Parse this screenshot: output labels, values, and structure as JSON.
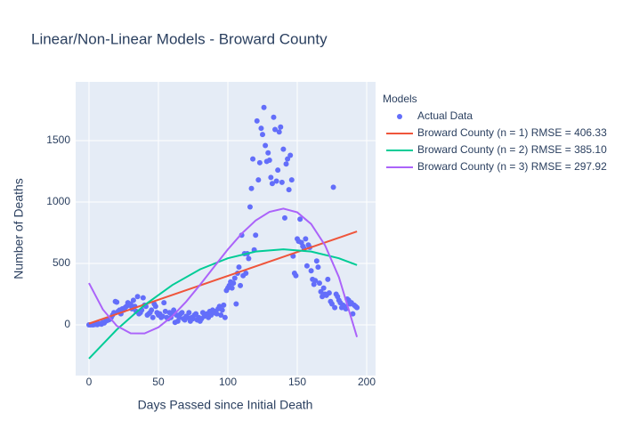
{
  "chart_data": {
    "type": "scatter",
    "title": "Linear/Non-Linear Models - Broward County",
    "x_label": "Days Passed since Initial Death",
    "y_label": "Number of Deaths",
    "legend_title": "Models",
    "xlim": [
      -9.6,
      206.4
    ],
    "ylim": [
      -413,
      1978
    ],
    "xticks": [
      0,
      50,
      100,
      150,
      200
    ],
    "yticks": [
      0,
      500,
      1000,
      1500
    ],
    "grid": true,
    "legend_position": "right",
    "series": [
      {
        "name": "Actual Data",
        "mode": "markers",
        "color": "#636efa",
        "x": [
          0,
          1,
          2,
          3,
          4,
          5,
          6,
          7,
          8,
          9,
          10,
          11,
          12,
          13,
          14,
          15,
          16,
          17,
          18,
          19,
          20,
          21,
          22,
          23,
          24,
          25,
          26,
          27,
          28,
          29,
          30,
          31,
          32,
          33,
          34,
          35,
          36,
          37,
          38,
          39,
          40,
          41,
          42,
          43,
          44,
          45,
          46,
          47,
          48,
          49,
          50,
          51,
          52,
          53,
          54,
          55,
          56,
          57,
          58,
          59,
          60,
          61,
          62,
          63,
          64,
          65,
          66,
          67,
          68,
          69,
          70,
          71,
          72,
          73,
          74,
          75,
          76,
          77,
          78,
          79,
          80,
          81,
          82,
          83,
          84,
          85,
          86,
          87,
          88,
          89,
          90,
          91,
          92,
          93,
          94,
          95,
          96,
          97,
          98,
          99,
          100,
          101,
          102,
          103,
          104,
          105,
          106,
          107,
          108,
          109,
          110,
          111,
          112,
          113,
          114,
          115,
          116,
          117,
          118,
          119,
          120,
          121,
          122,
          123,
          124,
          125,
          126,
          127,
          128,
          129,
          130,
          131,
          132,
          133,
          134,
          135,
          136,
          137,
          138,
          139,
          140,
          141,
          142,
          143,
          144,
          145,
          146,
          147,
          148,
          149,
          150,
          151,
          152,
          153,
          154,
          155,
          156,
          157,
          158,
          159,
          160,
          161,
          162,
          163,
          164,
          165,
          166,
          167,
          168,
          169,
          170,
          171,
          172,
          173,
          174,
          175,
          176,
          177,
          178,
          179,
          180,
          181,
          182,
          183,
          184,
          185,
          186,
          187,
          188,
          189,
          190,
          191,
          192,
          193
        ],
        "values": [
          0,
          0,
          1,
          0,
          3,
          5,
          2,
          8,
          10,
          5,
          20,
          15,
          30,
          35,
          40,
          45,
          60,
          80,
          100,
          190,
          185,
          110,
          120,
          90,
          130,
          120,
          140,
          150,
          180,
          160,
          170,
          130,
          200,
          150,
          110,
          230,
          90,
          100,
          120,
          220,
          160,
          150,
          80,
          90,
          100,
          120,
          60,
          170,
          150,
          100,
          80,
          90,
          60,
          70,
          180,
          110,
          60,
          50,
          100,
          60,
          90,
          120,
          20,
          80,
          30,
          60,
          90,
          100,
          50,
          40,
          70,
          60,
          100,
          30,
          60,
          50,
          80,
          90,
          40,
          60,
          30,
          50,
          100,
          70,
          80,
          90,
          60,
          110,
          80,
          120,
          100,
          110,
          90,
          130,
          150,
          80,
          120,
          160,
          60,
          280,
          300,
          320,
          350,
          300,
          340,
          380,
          170,
          420,
          470,
          320,
          730,
          400,
          580,
          420,
          580,
          540,
          960,
          1110,
          1350,
          610,
          730,
          1660,
          1180,
          1320,
          1600,
          1550,
          1770,
          1460,
          1330,
          1400,
          1340,
          1200,
          1150,
          1690,
          1590,
          1170,
          1260,
          1570,
          1610,
          1160,
          1430,
          870,
          1310,
          1350,
          1100,
          1380,
          1180,
          560,
          420,
          400,
          700,
          680,
          860,
          670,
          640,
          620,
          700,
          480,
          650,
          630,
          440,
          370,
          330,
          360,
          520,
          470,
          340,
          270,
          230,
          300,
          250,
          240,
          370,
          260,
          190,
          170,
          1120,
          140,
          250,
          230,
          200,
          180,
          140,
          160,
          150,
          130,
          210,
          200,
          170,
          180,
          90,
          160,
          150,
          140
        ]
      },
      {
        "name": "Broward County (n = 1) RMSE = 406.33",
        "mode": "lines",
        "color": "#EF553B",
        "x": [
          0,
          193
        ],
        "values": [
          10,
          760
        ]
      },
      {
        "name": "Broward County (n = 2) RMSE = 385.10",
        "mode": "lines",
        "color": "#00cc96",
        "x": [
          0,
          20,
          40,
          60,
          80,
          100,
          120,
          140,
          160,
          180,
          193
        ],
        "values": [
          -275,
          -39,
          161,
          324,
          452,
          542,
          597,
          615,
          597,
          542,
          487
        ]
      },
      {
        "name": "Broward County (n = 3) RMSE = 297.92",
        "mode": "lines",
        "color": "#ab63fa",
        "x": [
          0,
          10,
          20,
          30,
          40,
          50,
          60,
          70,
          80,
          90,
          100,
          110,
          120,
          130,
          140,
          150,
          160,
          170,
          180,
          193
        ],
        "values": [
          340,
          125,
          -8,
          -69,
          -70,
          -20,
          70,
          189,
          326,
          471,
          614,
          743,
          849,
          920,
          946,
          916,
          821,
          648,
          388,
          -99
        ]
      }
    ]
  }
}
